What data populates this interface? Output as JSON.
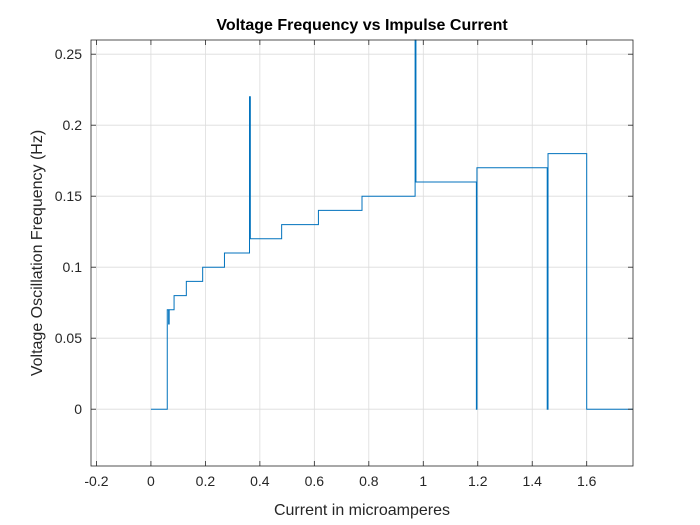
{
  "chart_data": {
    "type": "line",
    "title": "Voltage Frequency vs Impulse Current",
    "xlabel": "Current in microamperes",
    "ylabel": "Voltage Oscillation Frequency (Hz)",
    "xlim": [
      -0.22,
      1.77
    ],
    "ylim": [
      -0.04,
      0.26
    ],
    "xticks": [
      -0.2,
      0,
      0.2,
      0.4,
      0.6,
      0.8,
      1,
      1.2,
      1.4,
      1.6
    ],
    "xtick_labels": [
      "-0.2",
      "0",
      "0.2",
      "0.4",
      "0.6",
      "0.8",
      "1",
      "1.2",
      "1.4",
      "1.6"
    ],
    "yticks": [
      0,
      0.05,
      0.1,
      0.15,
      0.2,
      0.25
    ],
    "ytick_labels": [
      "0",
      "0.05",
      "0.1",
      "0.15",
      "0.2",
      "0.25"
    ],
    "grid": true,
    "line_color": "#0072BD",
    "series": [
      {
        "x": [
          0,
          0.06,
          0.06,
          0.065,
          0.065,
          0.067,
          0.067,
          0.085,
          0.085,
          0.13,
          0.13,
          0.19,
          0.19,
          0.27,
          0.27,
          0.362,
          0.362,
          0.365,
          0.365,
          0.368,
          0.368,
          0.48,
          0.48,
          0.615,
          0.615,
          0.775,
          0.775,
          0.97,
          0.97,
          0.973,
          0.973,
          1.195,
          1.195,
          1.197,
          1.197,
          1.455,
          1.455,
          1.458,
          1.458,
          1.6,
          1.6,
          1.77
        ],
        "y": [
          0,
          0,
          0.07,
          0.07,
          0.06,
          0.06,
          0.07,
          0.07,
          0.08,
          0.08,
          0.09,
          0.09,
          0.1,
          0.1,
          0.11,
          0.11,
          0.22,
          0.22,
          0.12,
          0.12,
          0.12,
          0.12,
          0.13,
          0.13,
          0.14,
          0.14,
          0.15,
          0.15,
          0.26,
          0.26,
          0.16,
          0.16,
          0,
          0,
          0.17,
          0.17,
          0,
          0,
          0.18,
          0.18,
          0,
          0
        ]
      }
    ]
  }
}
